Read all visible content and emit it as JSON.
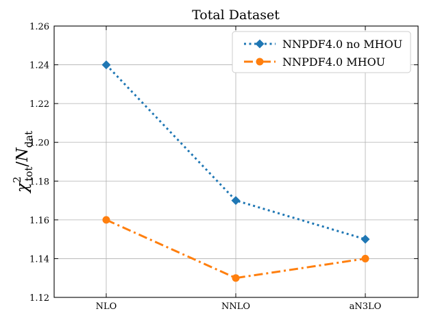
{
  "chart_data": {
    "type": "line",
    "title": "Total Dataset",
    "xlabel": "",
    "ylabel": {
      "base": "χ",
      "sup": "2",
      "sub": "tot",
      "slash": "/",
      "n": "N",
      "nsub": "dat"
    },
    "categories": [
      "NLO",
      "NNLO",
      "aN3LO"
    ],
    "ylim": [
      1.12,
      1.26
    ],
    "yticks": [
      "1.12",
      "1.14",
      "1.16",
      "1.18",
      "1.20",
      "1.22",
      "1.24",
      "1.26"
    ],
    "grid": true,
    "legend_position": "top-right",
    "series": [
      {
        "name": "NNPDF4.0 no MHOU",
        "values": [
          1.24,
          1.17,
          1.15
        ],
        "color": "#1f77b4",
        "marker": "diamond",
        "linestyle": "dotted"
      },
      {
        "name": "NNPDF4.0 MHOU",
        "values": [
          1.16,
          1.13,
          1.14
        ],
        "color": "#ff7f0e",
        "marker": "circle",
        "linestyle": "dashdot"
      }
    ]
  }
}
